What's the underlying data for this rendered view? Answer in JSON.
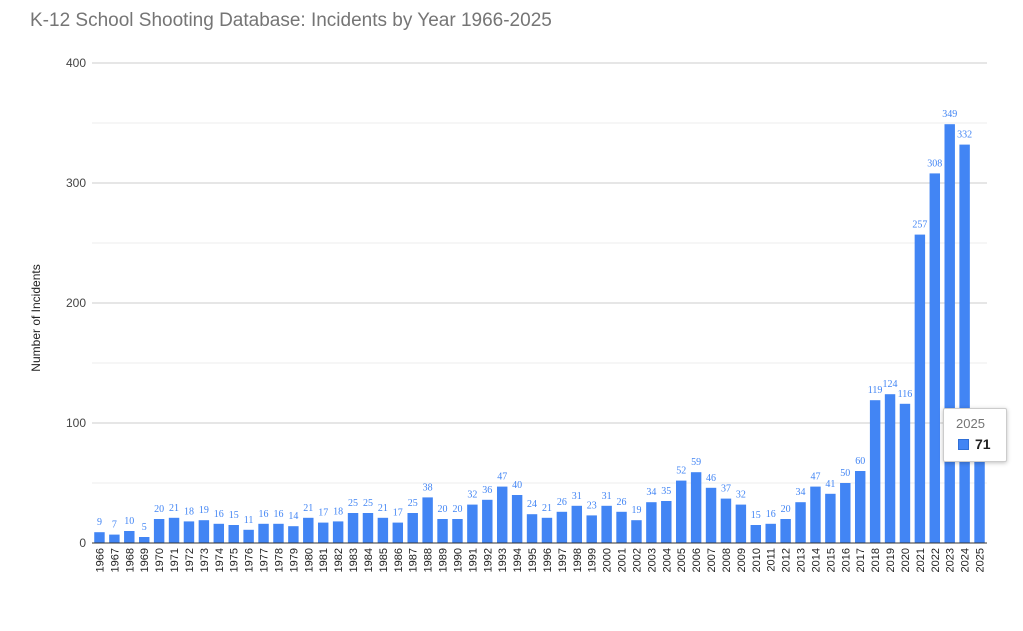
{
  "chart_data": {
    "type": "bar",
    "title": "K-12 School Shooting Database: Incidents by Year 1966-2025",
    "xlabel": "",
    "ylabel": "Number of Incidents",
    "ylim": [
      0,
      400
    ],
    "yticks": [
      0,
      100,
      200,
      300,
      400
    ],
    "grid": true,
    "bar_color": "#4285f4",
    "label_color": "#4285f4",
    "categories": [
      "1966",
      "1967",
      "1968",
      "1969",
      "1970",
      "1971",
      "1972",
      "1973",
      "1974",
      "1975",
      "1976",
      "1977",
      "1978",
      "1979",
      "1980",
      "1981",
      "1982",
      "1983",
      "1984",
      "1985",
      "1986",
      "1987",
      "1988",
      "1989",
      "1990",
      "1991",
      "1992",
      "1993",
      "1994",
      "1995",
      "1996",
      "1997",
      "1998",
      "1999",
      "2000",
      "2001",
      "2002",
      "2003",
      "2004",
      "2005",
      "2006",
      "2007",
      "2008",
      "2009",
      "2010",
      "2011",
      "2012",
      "2013",
      "2014",
      "2015",
      "2016",
      "2017",
      "2018",
      "2019",
      "2020",
      "2021",
      "2022",
      "2023",
      "2024",
      "2025"
    ],
    "values": [
      9,
      7,
      10,
      5,
      20,
      21,
      18,
      19,
      16,
      15,
      11,
      16,
      16,
      14,
      21,
      17,
      18,
      25,
      25,
      21,
      17,
      25,
      38,
      20,
      20,
      32,
      36,
      47,
      40,
      24,
      21,
      26,
      31,
      23,
      31,
      26,
      19,
      34,
      35,
      52,
      59,
      46,
      37,
      32,
      15,
      16,
      20,
      34,
      47,
      41,
      50,
      60,
      119,
      124,
      116,
      257,
      308,
      349,
      332,
      71
    ]
  },
  "tooltip": {
    "category": "2025",
    "value": "71"
  }
}
